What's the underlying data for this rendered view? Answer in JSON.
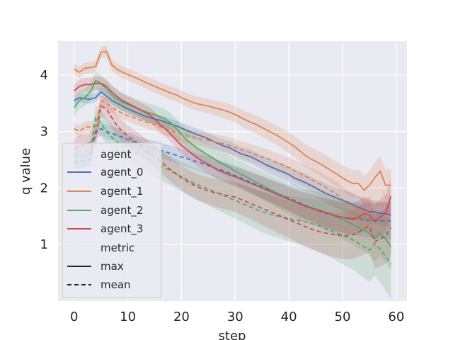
{
  "chart_data": {
    "type": "line",
    "xlabel": "step",
    "ylabel": "q value",
    "xlim": [
      -3,
      62
    ],
    "ylim": [
      0.0,
      4.6
    ],
    "x_ticks": [
      0,
      10,
      20,
      30,
      40,
      50,
      60
    ],
    "y_ticks": [
      1,
      2,
      3,
      4
    ],
    "grid": true,
    "style": "seaborn-darkgrid",
    "legend_placement": "lower-left",
    "legend": {
      "hue_title": "agent",
      "style_title": "metric",
      "style_entries": [
        {
          "label": "max",
          "dash": "solid"
        },
        {
          "label": "mean",
          "dash": "dashed"
        }
      ]
    },
    "x": [
      0,
      1,
      2,
      3,
      4,
      5,
      6,
      7,
      8,
      9,
      10,
      11,
      12,
      13,
      14,
      15,
      16,
      17,
      18,
      19,
      20,
      21,
      22,
      23,
      24,
      25,
      26,
      27,
      28,
      29,
      30,
      31,
      32,
      33,
      34,
      35,
      36,
      37,
      38,
      39,
      40,
      41,
      42,
      43,
      44,
      45,
      46,
      47,
      48,
      49,
      50,
      51,
      52,
      53,
      54,
      55,
      56,
      57,
      58,
      59
    ],
    "series": [
      {
        "name": "agent_0",
        "color": "#4c72b0",
        "max": [
          3.55,
          3.6,
          3.58,
          3.57,
          3.6,
          3.7,
          3.63,
          3.55,
          3.5,
          3.45,
          3.4,
          3.36,
          3.32,
          3.28,
          3.25,
          3.22,
          3.2,
          3.17,
          3.13,
          3.1,
          3.06,
          3.02,
          2.98,
          2.94,
          2.91,
          2.87,
          2.82,
          2.78,
          2.74,
          2.71,
          2.66,
          2.61,
          2.58,
          2.55,
          2.5,
          2.45,
          2.4,
          2.36,
          2.32,
          2.28,
          2.24,
          2.18,
          2.14,
          2.1,
          2.05,
          2.0,
          1.95,
          1.9,
          1.86,
          1.82,
          1.78,
          1.75,
          1.7,
          1.66,
          1.62,
          1.58,
          1.58,
          1.55,
          1.55,
          1.52
        ],
        "max_band": 0.08,
        "mean": [
          2.45,
          2.47,
          2.48,
          2.5,
          3.0,
          3.05,
          3.0,
          2.97,
          2.93,
          2.9,
          2.86,
          2.82,
          2.78,
          2.75,
          2.72,
          2.7,
          2.67,
          2.64,
          2.61,
          2.58,
          2.55,
          2.52,
          2.49,
          2.46,
          2.43,
          2.4,
          2.36,
          2.33,
          2.3,
          2.26,
          2.22,
          2.18,
          2.14,
          2.1,
          2.06,
          2.02,
          1.98,
          1.94,
          1.9,
          1.86,
          1.82,
          1.78,
          1.74,
          1.7,
          1.66,
          1.62,
          1.58,
          1.55,
          1.52,
          1.5,
          1.48,
          1.47,
          1.46,
          1.45,
          1.44,
          1.43,
          1.43,
          1.42,
          1.42,
          1.42
        ],
        "mean_band": 0.12
      },
      {
        "name": "agent_1",
        "color": "#dd8452",
        "max": [
          4.1,
          4.05,
          4.12,
          4.13,
          4.15,
          4.4,
          4.42,
          4.18,
          4.1,
          4.05,
          4.01,
          3.97,
          3.93,
          3.88,
          3.84,
          3.8,
          3.76,
          3.72,
          3.68,
          3.65,
          3.6,
          3.56,
          3.52,
          3.49,
          3.47,
          3.45,
          3.42,
          3.4,
          3.37,
          3.34,
          3.3,
          3.25,
          3.2,
          3.16,
          3.12,
          3.07,
          3.02,
          2.97,
          2.92,
          2.86,
          2.8,
          2.74,
          2.66,
          2.58,
          2.52,
          2.47,
          2.42,
          2.36,
          2.3,
          2.24,
          2.18,
          2.12,
          2.08,
          2.08,
          1.96,
          2.05,
          2.18,
          2.3,
          2.05,
          2.05
        ],
        "max_band": 0.1,
        "mean": [
          3.05,
          3.0,
          3.08,
          3.08,
          3.1,
          3.55,
          3.5,
          3.43,
          3.37,
          3.32,
          3.28,
          3.25,
          3.21,
          3.18,
          3.15,
          3.12,
          3.08,
          3.05,
          3.02,
          2.98,
          2.95,
          2.92,
          2.9,
          2.88,
          2.86,
          2.84,
          2.82,
          2.8,
          2.78,
          2.75,
          2.72,
          2.68,
          2.65,
          2.62,
          2.58,
          2.55,
          2.52,
          2.48,
          2.44,
          2.4,
          2.36,
          2.31,
          2.26,
          2.21,
          2.16,
          2.11,
          2.06,
          2.0,
          1.94,
          1.88,
          1.8,
          1.72,
          1.66,
          1.6,
          1.54,
          1.58,
          1.66,
          1.75,
          1.6,
          1.6
        ],
        "mean_band": 0.1
      },
      {
        "name": "agent_2",
        "color": "#55a868",
        "max": [
          3.42,
          3.55,
          3.6,
          3.7,
          3.9,
          3.85,
          3.75,
          3.65,
          3.58,
          3.52,
          3.48,
          3.44,
          3.4,
          3.36,
          3.33,
          3.3,
          3.26,
          3.22,
          3.15,
          3.05,
          2.95,
          2.85,
          2.77,
          2.7,
          2.64,
          2.58,
          2.52,
          2.46,
          2.41,
          2.36,
          2.3,
          2.25,
          2.2,
          2.15,
          2.1,
          2.05,
          2.0,
          1.95,
          1.9,
          1.85,
          1.8,
          1.76,
          1.72,
          1.69,
          1.66,
          1.63,
          1.6,
          1.56,
          1.52,
          1.48,
          1.44,
          1.4,
          1.35,
          1.3,
          1.25,
          1.2,
          1.1,
          1.2,
          1.1,
          0.96
        ],
        "max_band": 0.15,
        "mean": [
          2.6,
          2.55,
          2.58,
          2.62,
          3.25,
          3.15,
          3.0,
          2.9,
          2.82,
          2.75,
          2.7,
          2.65,
          2.6,
          2.55,
          2.5,
          2.45,
          2.4,
          2.35,
          2.3,
          2.25,
          2.2,
          2.15,
          2.1,
          2.06,
          2.02,
          1.98,
          1.94,
          1.9,
          1.86,
          1.82,
          1.78,
          1.74,
          1.7,
          1.66,
          1.62,
          1.58,
          1.55,
          1.52,
          1.5,
          1.48,
          1.46,
          1.44,
          1.42,
          1.4,
          1.38,
          1.35,
          1.32,
          1.28,
          1.24,
          1.2,
          1.16,
          1.12,
          1.08,
          1.02,
          0.96,
          0.9,
          1.02,
          0.92,
          0.8,
          0.65
        ],
        "mean_band": 0.22
      },
      {
        "name": "agent_3",
        "color": "#c44e52",
        "max": [
          3.72,
          3.8,
          3.83,
          3.83,
          3.85,
          3.85,
          3.8,
          3.7,
          3.62,
          3.55,
          3.5,
          3.45,
          3.4,
          3.35,
          3.3,
          3.22,
          3.12,
          3.05,
          2.95,
          2.85,
          2.75,
          2.68,
          2.6,
          2.53,
          2.47,
          2.42,
          2.36,
          2.31,
          2.27,
          2.23,
          2.2,
          2.16,
          2.12,
          2.08,
          2.04,
          2.0,
          1.96,
          1.92,
          1.88,
          1.84,
          1.8,
          1.76,
          1.72,
          1.68,
          1.65,
          1.62,
          1.59,
          1.56,
          1.53,
          1.5,
          1.48,
          1.46,
          1.45,
          1.48,
          1.55,
          1.52,
          1.4,
          1.48,
          1.55,
          1.85
        ],
        "max_band": 0.12,
        "mean": [
          2.7,
          2.75,
          2.78,
          2.8,
          2.9,
          3.45,
          3.4,
          3.25,
          3.1,
          3.0,
          2.92,
          2.85,
          2.78,
          2.7,
          2.62,
          2.55,
          2.48,
          2.4,
          2.32,
          2.25,
          2.18,
          2.12,
          2.07,
          2.02,
          1.98,
          1.95,
          1.92,
          1.9,
          1.88,
          1.86,
          1.84,
          1.8,
          1.76,
          1.72,
          1.68,
          1.64,
          1.6,
          1.56,
          1.52,
          1.48,
          1.44,
          1.4,
          1.36,
          1.32,
          1.28,
          1.25,
          1.22,
          1.2,
          1.18,
          1.17,
          1.16,
          1.16,
          1.18,
          1.22,
          1.28,
          1.32,
          1.05,
          1.1,
          1.15,
          1.3
        ],
        "mean_band": 0.18
      }
    ]
  }
}
